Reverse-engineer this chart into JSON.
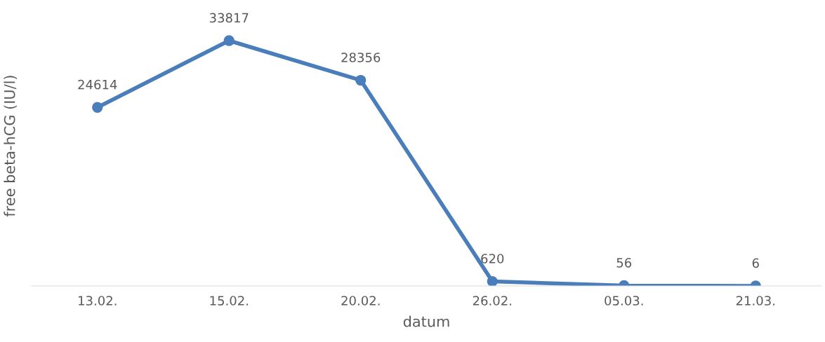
{
  "chart_data": {
    "type": "line",
    "xlabel": "datum",
    "ylabel": "free beta-hCG (IU/l)",
    "categories": [
      "13.02.",
      "15.02.",
      "20.02.",
      "26.02.",
      "05.03.",
      "21.03."
    ],
    "series": [
      {
        "color": "#4a7ebb",
        "values": [
          24614,
          33817,
          28356,
          620,
          56,
          6
        ]
      }
    ],
    "data_labels": true,
    "marker": "circle",
    "line_style": "solid",
    "tick_labels": "x"
  }
}
